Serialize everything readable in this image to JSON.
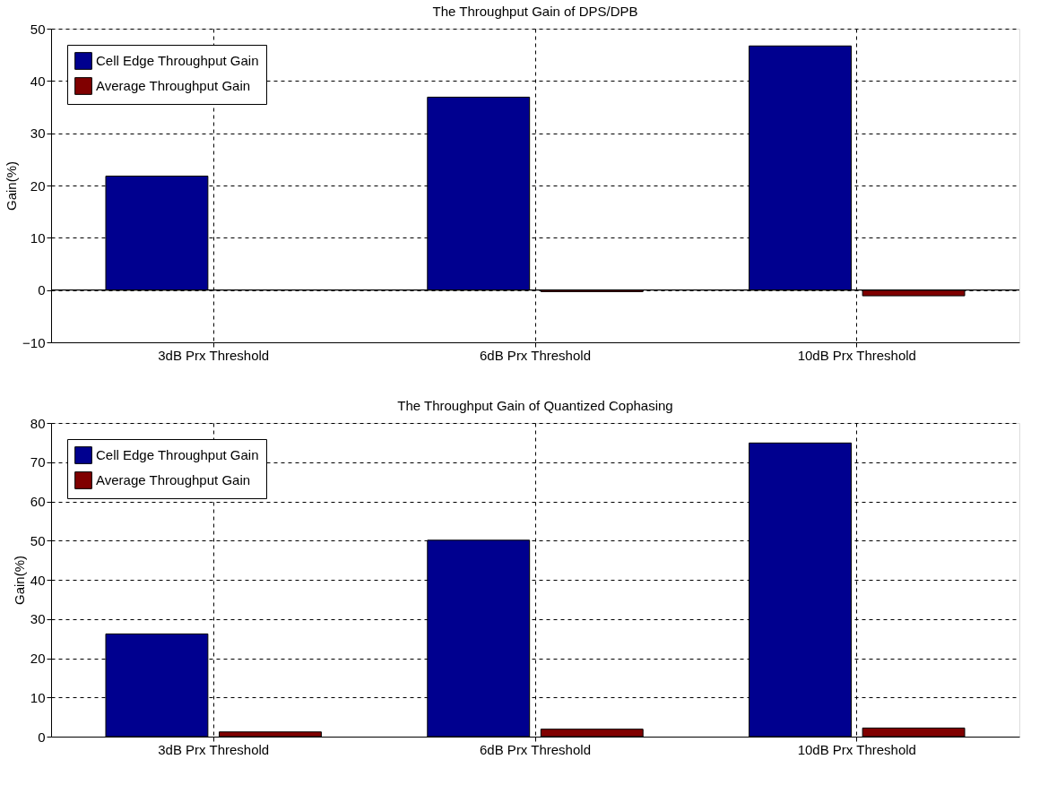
{
  "chart_data": [
    {
      "type": "bar",
      "title": "The Throughput Gain of DPS/DPB",
      "ylabel": "Gain(%)",
      "categories": [
        "3dB Prx Threshold",
        "6dB Prx Threshold",
        "10dB Prx Threshold"
      ],
      "series": [
        {
          "name": "Cell Edge Throughput Gain",
          "color": "#00008f",
          "values": [
            21.8,
            36.9,
            46.7
          ]
        },
        {
          "name": "Average Throughput Gain",
          "color": "#800000",
          "values": [
            null,
            -0.3,
            -1.1
          ]
        }
      ],
      "ylim": [
        -10,
        50
      ],
      "yticks": [
        -10,
        0,
        10,
        20,
        30,
        40,
        50
      ],
      "grid": true,
      "legend": "top left",
      "ref_lines": [
        {
          "axis": "y",
          "value": 0,
          "label": null
        }
      ]
    },
    {
      "type": "bar",
      "title": "The Throughput Gain of Quantized Cophasing",
      "ylabel": "Gain(%)",
      "categories": [
        "3dB Prx Threshold",
        "6dB Prx Threshold",
        "10dB Prx Threshold"
      ],
      "series": [
        {
          "name": "Cell Edge Throughput Gain",
          "color": "#00008f",
          "values": [
            26.2,
            50.1,
            74.9
          ]
        },
        {
          "name": "Average Throughput Gain",
          "color": "#800000",
          "values": [
            1.2,
            1.9,
            2.2
          ]
        }
      ],
      "ylim": [
        0,
        80
      ],
      "yticks": [
        0,
        10,
        20,
        30,
        40,
        50,
        60,
        70,
        80
      ],
      "grid": true,
      "legend": "top left"
    }
  ]
}
